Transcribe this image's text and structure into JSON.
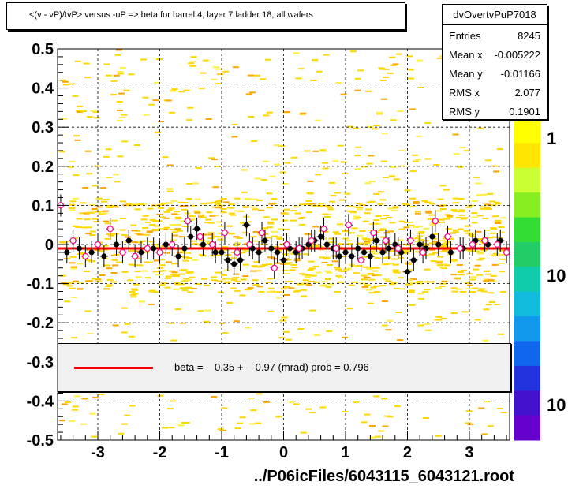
{
  "title": "<(v - vP)/tvP> versus  -uP => beta for barrel 4, layer 7 ladder 18, all wafers",
  "stats": {
    "name": "dvOvertvPuP7018",
    "rows": [
      {
        "label": "Entries",
        "value": "8245"
      },
      {
        "label": "Mean x",
        "value": "-0.005222"
      },
      {
        "label": "Mean y",
        "value": "-0.01166"
      },
      {
        "label": "RMS x",
        "value": "2.077"
      },
      {
        "label": "RMS y",
        "value": "0.1901"
      }
    ]
  },
  "legend": {
    "line_color": "#ff0000",
    "text": "beta =    0.35 +-   0.97 (mrad) prob = 0.796"
  },
  "x_footer": "../P06icFiles/6043115_6043121.root",
  "colorbar_labels": [
    "1",
    "10",
    "10"
  ],
  "chart_data": {
    "type": "scatter",
    "xlim": [
      -3.65,
      3.65
    ],
    "ylim": [
      -0.5,
      0.5
    ],
    "x_ticks": [
      "-3",
      "-2",
      "-1",
      "0",
      "1",
      "2",
      "3"
    ],
    "x_tick_values": [
      -3,
      -2,
      -1,
      0,
      1,
      2,
      3
    ],
    "y_ticks": [
      "-0.5",
      "-0.4",
      "-0.3",
      "-0.2",
      "-0.1",
      "0",
      "0.1",
      "0.2",
      "0.3",
      "0.4",
      "0.5"
    ],
    "y_tick_values": [
      -0.5,
      -0.4,
      -0.3,
      -0.2,
      -0.1,
      0,
      0.1,
      0.2,
      0.3,
      0.4,
      0.5
    ],
    "grid": true,
    "fit_line": {
      "color": "#ff0000",
      "y": -0.01
    },
    "series": [
      {
        "marker": "filled-circle",
        "color": "#000000",
        "x": [
          -3.5,
          -3.3,
          -3.1,
          -2.9,
          -2.7,
          -2.5,
          -2.3,
          -2.1,
          -1.9,
          -1.7,
          -1.6,
          -1.5,
          -1.4,
          -1.3,
          -1.1,
          -1.0,
          -0.9,
          -0.8,
          -0.7,
          -0.6,
          -0.5,
          -0.4,
          -0.3,
          -0.2,
          -0.1,
          0.0,
          0.1,
          0.2,
          0.3,
          0.4,
          0.5,
          0.6,
          0.7,
          0.8,
          0.9,
          1.0,
          1.1,
          1.2,
          1.3,
          1.4,
          1.5,
          1.6,
          1.7,
          1.8,
          1.9,
          2.0,
          2.1,
          2.2,
          2.3,
          2.4,
          2.5,
          2.7,
          2.9,
          3.1,
          3.3,
          3.5
        ],
        "y": [
          -0.02,
          -0.01,
          -0.02,
          -0.03,
          0.0,
          0.01,
          -0.02,
          -0.01,
          0.0,
          -0.03,
          -0.01,
          0.02,
          0.04,
          0.0,
          -0.02,
          -0.02,
          -0.04,
          -0.05,
          -0.04,
          0.05,
          -0.01,
          -0.02,
          0.01,
          -0.01,
          -0.02,
          -0.04,
          -0.01,
          -0.02,
          -0.01,
          0.0,
          0.01,
          0.02,
          0.0,
          -0.01,
          -0.03,
          -0.02,
          -0.03,
          -0.01,
          -0.02,
          -0.03,
          0.01,
          -0.02,
          -0.01,
          0.0,
          -0.02,
          -0.07,
          -0.04,
          0.0,
          -0.01,
          0.02,
          0.0,
          -0.02,
          -0.01,
          0.01,
          0.0,
          0.01
        ]
      },
      {
        "marker": "open-circle",
        "color": "#ff0088",
        "x": [
          -3.6,
          -3.4,
          -3.2,
          -3.0,
          -2.8,
          -2.6,
          -2.4,
          -2.2,
          -2.0,
          -1.8,
          -1.55,
          -1.35,
          -1.15,
          -0.95,
          -0.75,
          -0.55,
          -0.35,
          -0.15,
          0.05,
          0.25,
          0.45,
          0.65,
          0.85,
          1.05,
          1.25,
          1.45,
          1.65,
          1.85,
          2.05,
          2.25,
          2.45,
          2.65,
          2.85,
          3.05,
          3.25,
          3.45,
          3.6
        ],
        "y": [
          0.1,
          0.01,
          -0.03,
          0.0,
          0.04,
          -0.02,
          -0.03,
          -0.01,
          -0.02,
          0.0,
          0.06,
          0.02,
          0.0,
          0.03,
          -0.02,
          0.0,
          0.03,
          -0.06,
          0.0,
          -0.01,
          0.01,
          0.04,
          -0.01,
          0.05,
          -0.04,
          0.03,
          0.01,
          -0.01,
          0.01,
          -0.02,
          0.06,
          0.02,
          -0.01,
          0.0,
          0.01,
          0.0,
          -0.02
        ]
      }
    ]
  }
}
